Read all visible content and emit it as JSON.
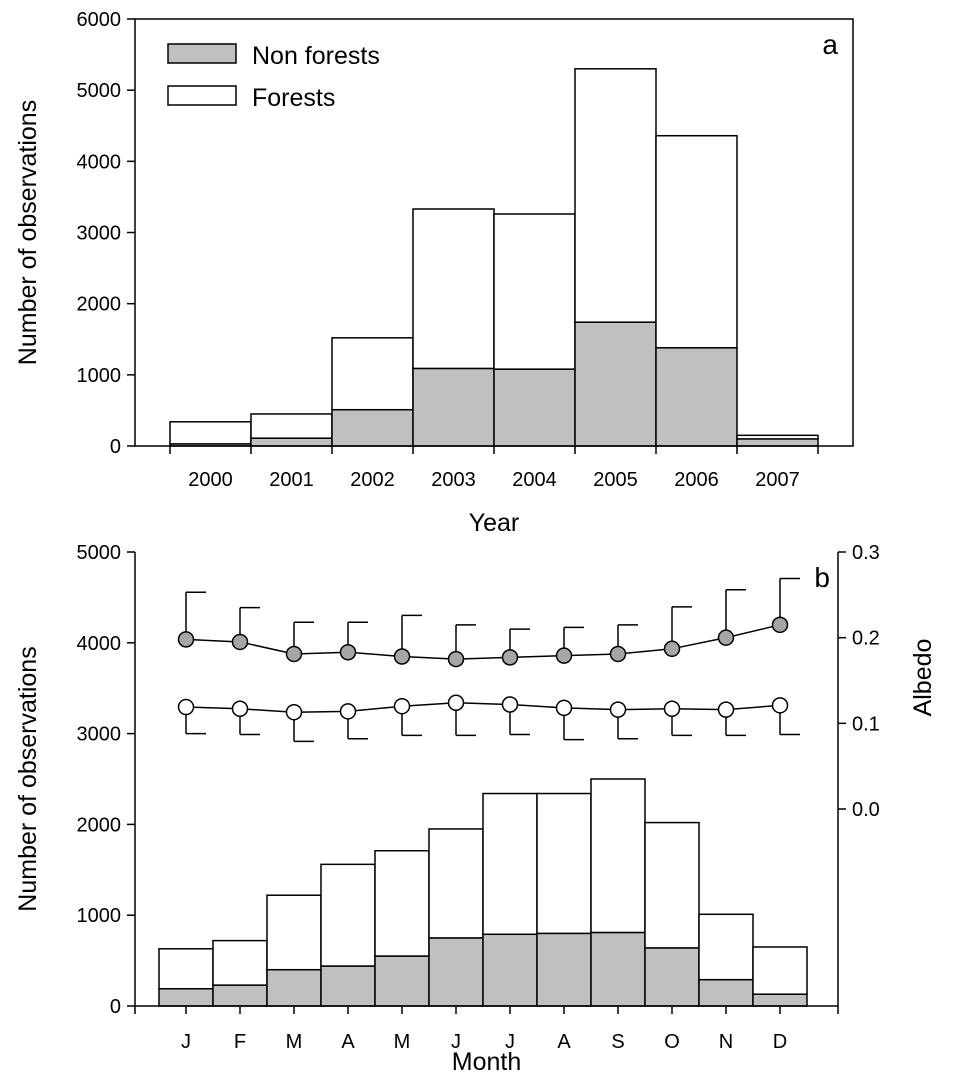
{
  "chart_data": [
    {
      "type": "bar",
      "panel": "a",
      "stacked": true,
      "xlabel": "Year",
      "ylabel": "Number of observations",
      "ylim": [
        0,
        6000
      ],
      "yticks": [
        0,
        1000,
        2000,
        3000,
        4000,
        5000,
        6000
      ],
      "categories": [
        "2000",
        "2001",
        "2002",
        "2003",
        "2004",
        "2005",
        "2006",
        "2007"
      ],
      "series": [
        {
          "name": "Non forests",
          "color": "#c0c0c0",
          "values": [
            30,
            110,
            510,
            1090,
            1080,
            1740,
            1380,
            100
          ]
        },
        {
          "name": "Forests",
          "color": "#ffffff",
          "values": [
            310,
            340,
            1010,
            2240,
            2180,
            3560,
            2980,
            50
          ]
        }
      ],
      "legend_position": "top-left"
    },
    {
      "type": "bar",
      "panel": "b",
      "stacked": true,
      "xlabel": "Month",
      "ylabel": "Number of observations",
      "y2label": "Albedo",
      "ylim": [
        0,
        5000
      ],
      "yticks": [
        0,
        1000,
        2000,
        3000,
        4000,
        5000
      ],
      "y2ticks": [
        "0.0",
        "0.1",
        "0.2",
        "0.3"
      ],
      "categories": [
        "J",
        "F",
        "M",
        "A",
        "M",
        "J",
        "J",
        "A",
        "S",
        "O",
        "N",
        "D"
      ],
      "series": [
        {
          "name": "Non forests",
          "color": "#c0c0c0",
          "values": [
            190,
            230,
            400,
            440,
            550,
            750,
            790,
            800,
            810,
            640,
            290,
            130
          ]
        },
        {
          "name": "Forests",
          "color": "#ffffff",
          "values": [
            440,
            490,
            820,
            1120,
            1160,
            1200,
            1550,
            1540,
            1690,
            1380,
            720,
            520
          ]
        }
      ],
      "albedo_series": [
        {
          "name": "Non forests",
          "marker": "filled-grey-circle",
          "values": [
            0.198,
            0.195,
            0.181,
            0.183,
            0.178,
            0.175,
            0.177,
            0.179,
            0.181,
            0.187,
            0.2,
            0.215
          ],
          "errors": [
            0.055,
            0.04,
            0.037,
            0.035,
            0.048,
            0.04,
            0.033,
            0.033,
            0.034,
            0.049,
            0.056,
            0.054
          ],
          "error_direction": "up"
        },
        {
          "name": "Forests",
          "marker": "open-circle",
          "values": [
            0.119,
            0.117,
            0.113,
            0.114,
            0.12,
            0.124,
            0.122,
            0.118,
            0.116,
            0.117,
            0.116,
            0.121
          ],
          "errors": [
            0.031,
            0.03,
            0.034,
            0.032,
            0.034,
            0.038,
            0.035,
            0.037,
            0.034,
            0.031,
            0.03,
            0.034
          ],
          "error_direction": "down"
        }
      ]
    }
  ]
}
